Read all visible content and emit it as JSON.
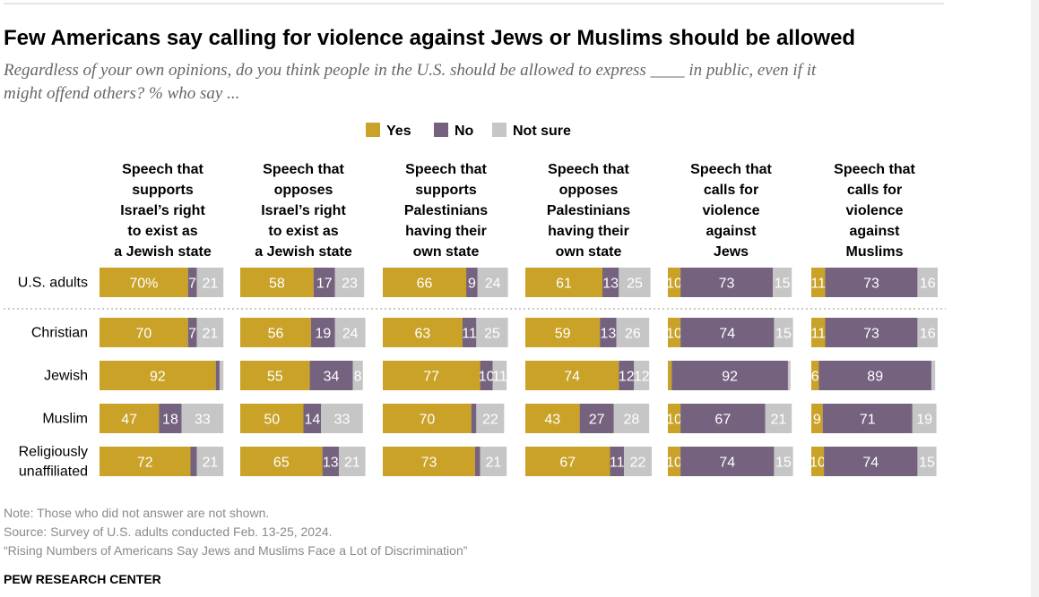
{
  "title": "Few Americans say calling for violence against Jews or Muslims should be allowed",
  "subtitle_lines": [
    "Regardless of your own opinions, do you think people in the U.S. should be allowed to express ____ in public, even if it",
    "might offend others? % who say ..."
  ],
  "notes": [
    "Note: Those who did not answer are not shown.",
    "Source: Survey of U.S. adults conducted Feb. 13-25, 2024.",
    "“Rising Numbers of Americans Say Jews and Muslims Face a Lot of Discrimination”"
  ],
  "credit": "PEW RESEARCH CENTER",
  "colors": {
    "yes": "#c9a227",
    "no": "#74627f",
    "not_sure": "#c6c6c6",
    "divider": "#aaaaaa"
  },
  "chart_data": {
    "type": "bar",
    "orientation": "horizontal-stacked",
    "panels": [
      {
        "header_lines": [
          "Speech that",
          "supports",
          "Israel’s right",
          "to exist as",
          "a Jewish state"
        ]
      },
      {
        "header_lines": [
          "Speech that",
          "opposes",
          "Israel’s right",
          "to exist as",
          "a Jewish state"
        ]
      },
      {
        "header_lines": [
          "Speech that",
          "supports",
          "Palestinians",
          "having their",
          "own state"
        ]
      },
      {
        "header_lines": [
          "Speech that",
          "opposes",
          "Palestinians",
          "having their",
          "own state"
        ]
      },
      {
        "header_lines": [
          "Speech that",
          "calls for",
          "violence",
          "against",
          "Jews"
        ]
      },
      {
        "header_lines": [
          "Speech that",
          "calls for",
          "violence",
          "against",
          "Muslims"
        ]
      }
    ],
    "rows": [
      {
        "label_lines": [
          "U.S. adults"
        ]
      },
      {
        "label_lines": [
          "Christian"
        ]
      },
      {
        "label_lines": [
          "Jewish"
        ]
      },
      {
        "label_lines": [
          "Muslim"
        ]
      },
      {
        "label_lines": [
          "Religiously",
          "unaffiliated"
        ]
      }
    ],
    "series": [
      {
        "name": "Yes",
        "color_key": "yes"
      },
      {
        "name": "No",
        "color_key": "no"
      },
      {
        "name": "Not sure",
        "color_key": "not_sure"
      }
    ],
    "values": [
      [
        [
          70,
          7,
          21
        ],
        [
          58,
          17,
          23
        ],
        [
          66,
          9,
          24
        ],
        [
          61,
          13,
          25
        ],
        [
          10,
          73,
          15
        ],
        [
          11,
          73,
          16
        ]
      ],
      [
        [
          70,
          7,
          21
        ],
        [
          56,
          19,
          24
        ],
        [
          63,
          11,
          25
        ],
        [
          59,
          13,
          26
        ],
        [
          10,
          74,
          15
        ],
        [
          11,
          73,
          16
        ]
      ],
      [
        [
          92,
          3,
          3
        ],
        [
          55,
          34,
          8
        ],
        [
          77,
          10,
          11
        ],
        [
          74,
          12,
          12
        ],
        [
          3,
          92,
          2
        ],
        [
          6,
          89,
          3
        ]
      ],
      [
        [
          47,
          18,
          33
        ],
        [
          50,
          14,
          33
        ],
        [
          70,
          4,
          22
        ],
        [
          43,
          27,
          28
        ],
        [
          10,
          67,
          21
        ],
        [
          9,
          71,
          19
        ]
      ],
      [
        [
          72,
          5,
          21
        ],
        [
          65,
          13,
          21
        ],
        [
          73,
          4,
          21
        ],
        [
          67,
          11,
          22
        ],
        [
          10,
          74,
          15
        ],
        [
          10,
          74,
          15
        ]
      ]
    ],
    "value_labels": [
      [
        [
          "70%",
          "7",
          "21"
        ],
        [
          "58",
          "17",
          "23"
        ],
        [
          "66",
          "9",
          "24"
        ],
        [
          "61",
          "13",
          "25"
        ],
        [
          "10",
          "73",
          "15"
        ],
        [
          "11",
          "73",
          "16"
        ]
      ],
      [
        [
          "70",
          "7",
          "21"
        ],
        [
          "56",
          "19",
          "24"
        ],
        [
          "63",
          "11",
          "25"
        ],
        [
          "59",
          "13",
          "26"
        ],
        [
          "10",
          "74",
          "15"
        ],
        [
          "11",
          "73",
          "16"
        ]
      ],
      [
        [
          "92",
          "",
          ""
        ],
        [
          "55",
          "34",
          "8"
        ],
        [
          "77",
          "10",
          "11"
        ],
        [
          "74",
          "12",
          "12"
        ],
        [
          "",
          "92",
          ""
        ],
        [
          "6",
          "89",
          ""
        ]
      ],
      [
        [
          "47",
          "18",
          "33"
        ],
        [
          "50",
          "14",
          "33"
        ],
        [
          "70",
          "",
          "22"
        ],
        [
          "43",
          "27",
          "28"
        ],
        [
          "10",
          "67",
          "21"
        ],
        [
          "9",
          "71",
          "19"
        ]
      ],
      [
        [
          "72",
          "",
          "21"
        ],
        [
          "65",
          "13",
          "21"
        ],
        [
          "73",
          "",
          "21"
        ],
        [
          "67",
          "11",
          "22"
        ],
        [
          "10",
          "74",
          "15"
        ],
        [
          "10",
          "74",
          "15"
        ]
      ]
    ],
    "xlim": [
      0,
      100
    ],
    "legend_position": "top-center",
    "grid": false
  }
}
